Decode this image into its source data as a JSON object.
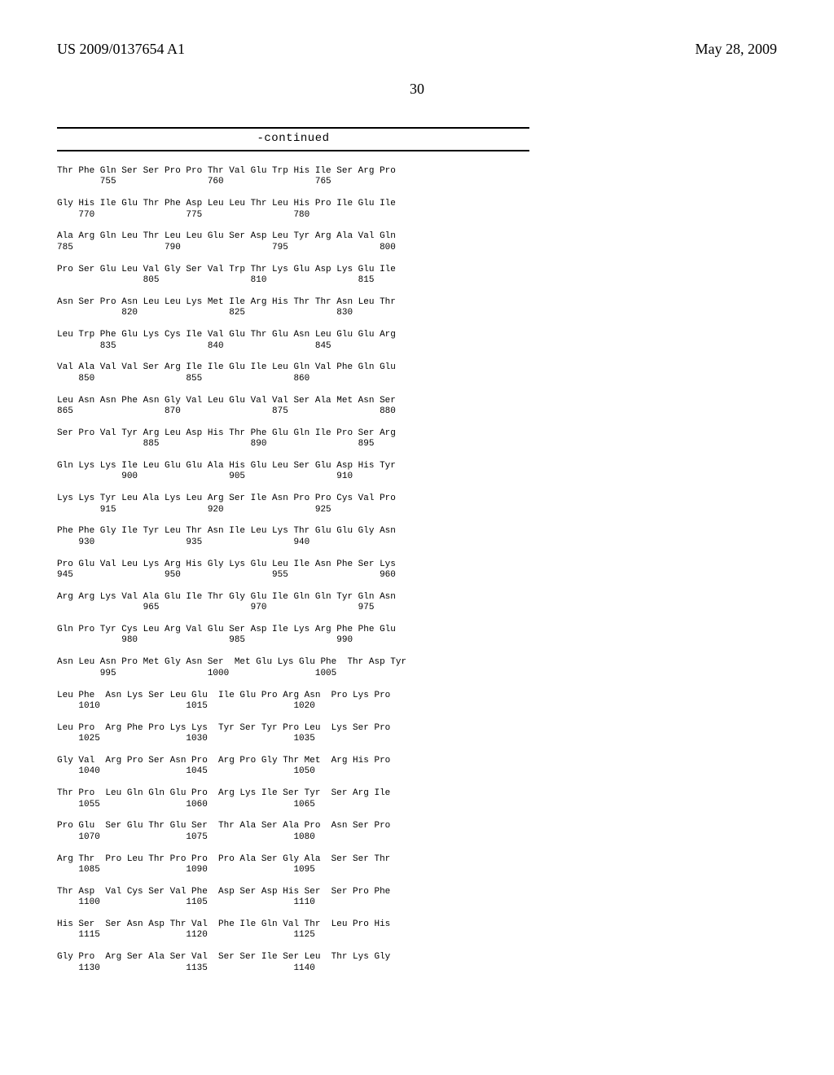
{
  "header": {
    "left": "US 2009/0137654 A1",
    "right": "May 28, 2009"
  },
  "page_number": "30",
  "continued_label": "-continued",
  "sequence_text": "Thr Phe Gln Ser Ser Pro Pro Thr Val Glu Trp His Ile Ser Arg Pro\n        755                 760                 765\n\nGly His Ile Glu Thr Phe Asp Leu Leu Thr Leu His Pro Ile Glu Ile\n    770                 775                 780\n\nAla Arg Gln Leu Thr Leu Leu Glu Ser Asp Leu Tyr Arg Ala Val Gln\n785                 790                 795                 800\n\nPro Ser Glu Leu Val Gly Ser Val Trp Thr Lys Glu Asp Lys Glu Ile\n                805                 810                 815\n\nAsn Ser Pro Asn Leu Leu Lys Met Ile Arg His Thr Thr Asn Leu Thr\n            820                 825                 830\n\nLeu Trp Phe Glu Lys Cys Ile Val Glu Thr Glu Asn Leu Glu Glu Arg\n        835                 840                 845\n\nVal Ala Val Val Ser Arg Ile Ile Glu Ile Leu Gln Val Phe Gln Glu\n    850                 855                 860\n\nLeu Asn Asn Phe Asn Gly Val Leu Glu Val Val Ser Ala Met Asn Ser\n865                 870                 875                 880\n\nSer Pro Val Tyr Arg Leu Asp His Thr Phe Glu Gln Ile Pro Ser Arg\n                885                 890                 895\n\nGln Lys Lys Ile Leu Glu Glu Ala His Glu Leu Ser Glu Asp His Tyr\n            900                 905                 910\n\nLys Lys Tyr Leu Ala Lys Leu Arg Ser Ile Asn Pro Pro Cys Val Pro\n        915                 920                 925\n\nPhe Phe Gly Ile Tyr Leu Thr Asn Ile Leu Lys Thr Glu Glu Gly Asn\n    930                 935                 940\n\nPro Glu Val Leu Lys Arg His Gly Lys Glu Leu Ile Asn Phe Ser Lys\n945                 950                 955                 960\n\nArg Arg Lys Val Ala Glu Ile Thr Gly Glu Ile Gln Gln Tyr Gln Asn\n                965                 970                 975\n\nGln Pro Tyr Cys Leu Arg Val Glu Ser Asp Ile Lys Arg Phe Phe Glu\n            980                 985                 990\n\nAsn Leu Asn Pro Met Gly Asn Ser  Met Glu Lys Glu Phe  Thr Asp Tyr\n        995                 1000                1005\n\nLeu Phe  Asn Lys Ser Leu Glu  Ile Glu Pro Arg Asn  Pro Lys Pro\n    1010                1015                1020\n\nLeu Pro  Arg Phe Pro Lys Lys  Tyr Ser Tyr Pro Leu  Lys Ser Pro\n    1025                1030                1035\n\nGly Val  Arg Pro Ser Asn Pro  Arg Pro Gly Thr Met  Arg His Pro\n    1040                1045                1050\n\nThr Pro  Leu Gln Gln Glu Pro  Arg Lys Ile Ser Tyr  Ser Arg Ile\n    1055                1060                1065\n\nPro Glu  Ser Glu Thr Glu Ser  Thr Ala Ser Ala Pro  Asn Ser Pro\n    1070                1075                1080\n\nArg Thr  Pro Leu Thr Pro Pro  Pro Ala Ser Gly Ala  Ser Ser Thr\n    1085                1090                1095\n\nThr Asp  Val Cys Ser Val Phe  Asp Ser Asp His Ser  Ser Pro Phe\n    1100                1105                1110\n\nHis Ser  Ser Asn Asp Thr Val  Phe Ile Gln Val Thr  Leu Pro His\n    1115                1120                1125\n\nGly Pro  Arg Ser Ala Ser Val  Ser Ser Ile Ser Leu  Thr Lys Gly\n    1130                1135                1140"
}
